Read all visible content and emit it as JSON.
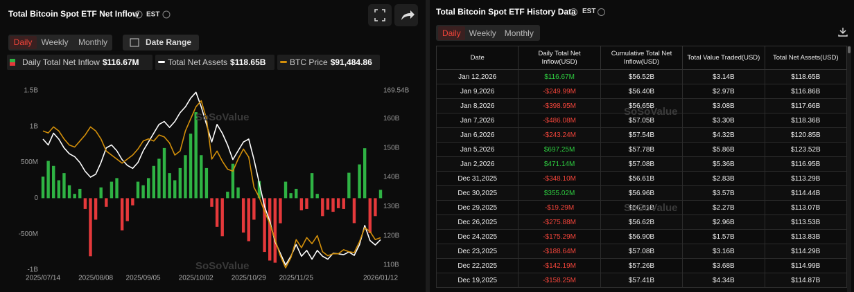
{
  "header": {
    "title": "Total Bitcoin Spot ETF Net Inflow",
    "timezone": "EST",
    "tabs": [
      "Daily",
      "Weekly",
      "Monthly"
    ],
    "date_range": "Date Range"
  },
  "watermark": "SoSoValue",
  "chart_data": {
    "type": "combo",
    "categories": [
      "2025/07/14",
      null,
      null,
      null,
      null,
      null,
      null,
      null,
      null,
      null,
      "2025/08/08",
      null,
      null,
      null,
      null,
      null,
      null,
      null,
      null,
      "2025/09/05",
      null,
      null,
      null,
      null,
      null,
      null,
      null,
      null,
      null,
      "2025/10/02",
      null,
      null,
      null,
      null,
      null,
      null,
      null,
      null,
      null,
      "2025/10/29",
      null,
      null,
      null,
      null,
      null,
      null,
      null,
      null,
      "2025/11/25",
      null,
      null,
      null,
      null,
      null,
      null,
      null,
      null,
      null,
      null,
      null,
      null,
      null,
      null,
      null,
      "2026/01/12"
    ],
    "ylim": [
      -1000,
      1500
    ],
    "yticks": [
      {
        "value": 1500,
        "label": "1.5B"
      },
      {
        "value": 1000,
        "label": "1B"
      },
      {
        "value": 500,
        "label": "500M"
      },
      0,
      {
        "value": -500,
        "label": "-500M"
      },
      {
        "value": -1000,
        "label": "-1B"
      }
    ],
    "y2lim": [
      108.35,
      169.54
    ],
    "y2ticks": [
      {
        "value": 169.54,
        "label": "169.54B"
      },
      {
        "value": 160,
        "label": "160B"
      },
      {
        "value": 150,
        "label": "150B"
      },
      {
        "value": 140,
        "label": "140B"
      },
      {
        "value": 130,
        "label": "130B"
      },
      {
        "value": 120,
        "label": "120B"
      },
      {
        "value": 110,
        "label": "110B"
      }
    ],
    "y3lim": [
      83500,
      128000
    ],
    "grid": false,
    "series": [
      {
        "name": "Daily Total Net Inflow",
        "type": "bar",
        "legend_value": "$116.67M",
        "positive_color": "#2fb344",
        "negative_color": "#e5393b",
        "values": [
          300,
          520,
          450,
          250,
          350,
          180,
          60,
          130,
          -150,
          -810,
          -300,
          150,
          -120,
          230,
          280,
          -450,
          -320,
          -100,
          230,
          180,
          280,
          450,
          550,
          700,
          350,
          250,
          420,
          600,
          900,
          1200,
          600,
          420,
          -120,
          -400,
          -530,
          90,
          480,
          150,
          -480,
          -600,
          -300,
          240,
          -750,
          -870,
          -900,
          -350,
          230,
          70,
          130,
          -170,
          -150,
          350,
          60,
          -250,
          -160,
          -190,
          -140,
          -150,
          355.02,
          -348.1,
          471.14,
          697.25,
          -486.08,
          -249.99,
          116.67
        ]
      },
      {
        "name": "Total Net Assets",
        "type": "line",
        "axis": "y2",
        "legend_value": "$118.65B",
        "color": "#ffffff",
        "values": [
          153,
          151,
          155,
          153,
          150,
          148,
          147,
          145,
          142,
          140,
          141,
          145,
          150,
          151,
          149,
          146,
          144,
          143,
          145,
          149,
          152,
          155,
          158,
          159,
          157,
          159,
          162,
          164,
          167,
          169,
          164,
          158,
          152,
          158,
          155,
          151,
          146,
          149,
          152,
          153,
          146,
          138,
          130,
          125,
          118,
          114,
          110,
          113,
          117,
          113,
          115,
          112,
          115,
          113,
          112,
          114,
          113.83,
          113.53,
          114.44,
          113.29,
          116.95,
          123.52,
          118.36,
          116.86,
          118.65
        ]
      },
      {
        "name": "BTC Price",
        "type": "line",
        "axis": "y3",
        "legend_value": "$91,484.86",
        "color": "#d4900a",
        "values": [
          118000,
          117500,
          119000,
          118000,
          116000,
          114500,
          114000,
          115500,
          117000,
          119000,
          118000,
          116000,
          113000,
          112000,
          111000,
          110000,
          111000,
          112000,
          113500,
          115500,
          116000,
          115500,
          117000,
          116500,
          115000,
          112000,
          113000,
          118000,
          121000,
          124000,
          125500,
          121000,
          111000,
          113000,
          110500,
          108500,
          108000,
          111000,
          113500,
          111500,
          104000,
          101500,
          98000,
          95000,
          91000,
          87000,
          84000,
          86500,
          91000,
          89000,
          91500,
          90000,
          92000,
          88000,
          87000,
          87500,
          87500,
          88500,
          88000,
          87800,
          90500,
          94000,
          93000,
          91000,
          91484.86
        ]
      }
    ]
  },
  "table_panel": {
    "title": "Total Bitcoin Spot ETF History Data",
    "timezone": "EST",
    "tabs": [
      "Daily",
      "Weekly",
      "Monthly"
    ],
    "columns": [
      "Date",
      "Daily Total Net Inflow(USD)",
      "Cumulative Total Net Inflow(USD)",
      "Total Value Traded(USD)",
      "Total Net Assets(USD)"
    ],
    "rows": [
      [
        "Jan 12,2026",
        "$116.67M",
        "$56.52B",
        "$3.14B",
        "$118.65B"
      ],
      [
        "Jan 9,2026",
        "-$249.99M",
        "$56.40B",
        "$2.97B",
        "$116.86B"
      ],
      [
        "Jan 8,2026",
        "-$398.95M",
        "$56.65B",
        "$3.08B",
        "$117.66B"
      ],
      [
        "Jan 7,2026",
        "-$486.08M",
        "$57.05B",
        "$3.30B",
        "$118.36B"
      ],
      [
        "Jan 6,2026",
        "-$243.24M",
        "$57.54B",
        "$4.32B",
        "$120.85B"
      ],
      [
        "Jan 5,2026",
        "$697.25M",
        "$57.78B",
        "$5.86B",
        "$123.52B"
      ],
      [
        "Jan 2,2026",
        "$471.14M",
        "$57.08B",
        "$5.36B",
        "$116.95B"
      ],
      [
        "Dec 31,2025",
        "-$348.10M",
        "$56.61B",
        "$2.83B",
        "$113.29B"
      ],
      [
        "Dec 30,2025",
        "$355.02M",
        "$56.96B",
        "$3.57B",
        "$114.44B"
      ],
      [
        "Dec 29,2025",
        "-$19.29M",
        "$56.61B",
        "$2.27B",
        "$113.07B"
      ],
      [
        "Dec 26,2025",
        "-$275.88M",
        "$56.62B",
        "$2.96B",
        "$113.53B"
      ],
      [
        "Dec 24,2025",
        "-$175.29M",
        "$56.90B",
        "$1.57B",
        "$113.83B"
      ],
      [
        "Dec 23,2025",
        "-$188.64M",
        "$57.08B",
        "$3.16B",
        "$114.29B"
      ],
      [
        "Dec 22,2025",
        "-$142.19M",
        "$57.26B",
        "$3.68B",
        "$114.99B"
      ],
      [
        "Dec 19,2025",
        "-$158.25M",
        "$57.41B",
        "$4.34B",
        "$114.87B"
      ]
    ]
  }
}
